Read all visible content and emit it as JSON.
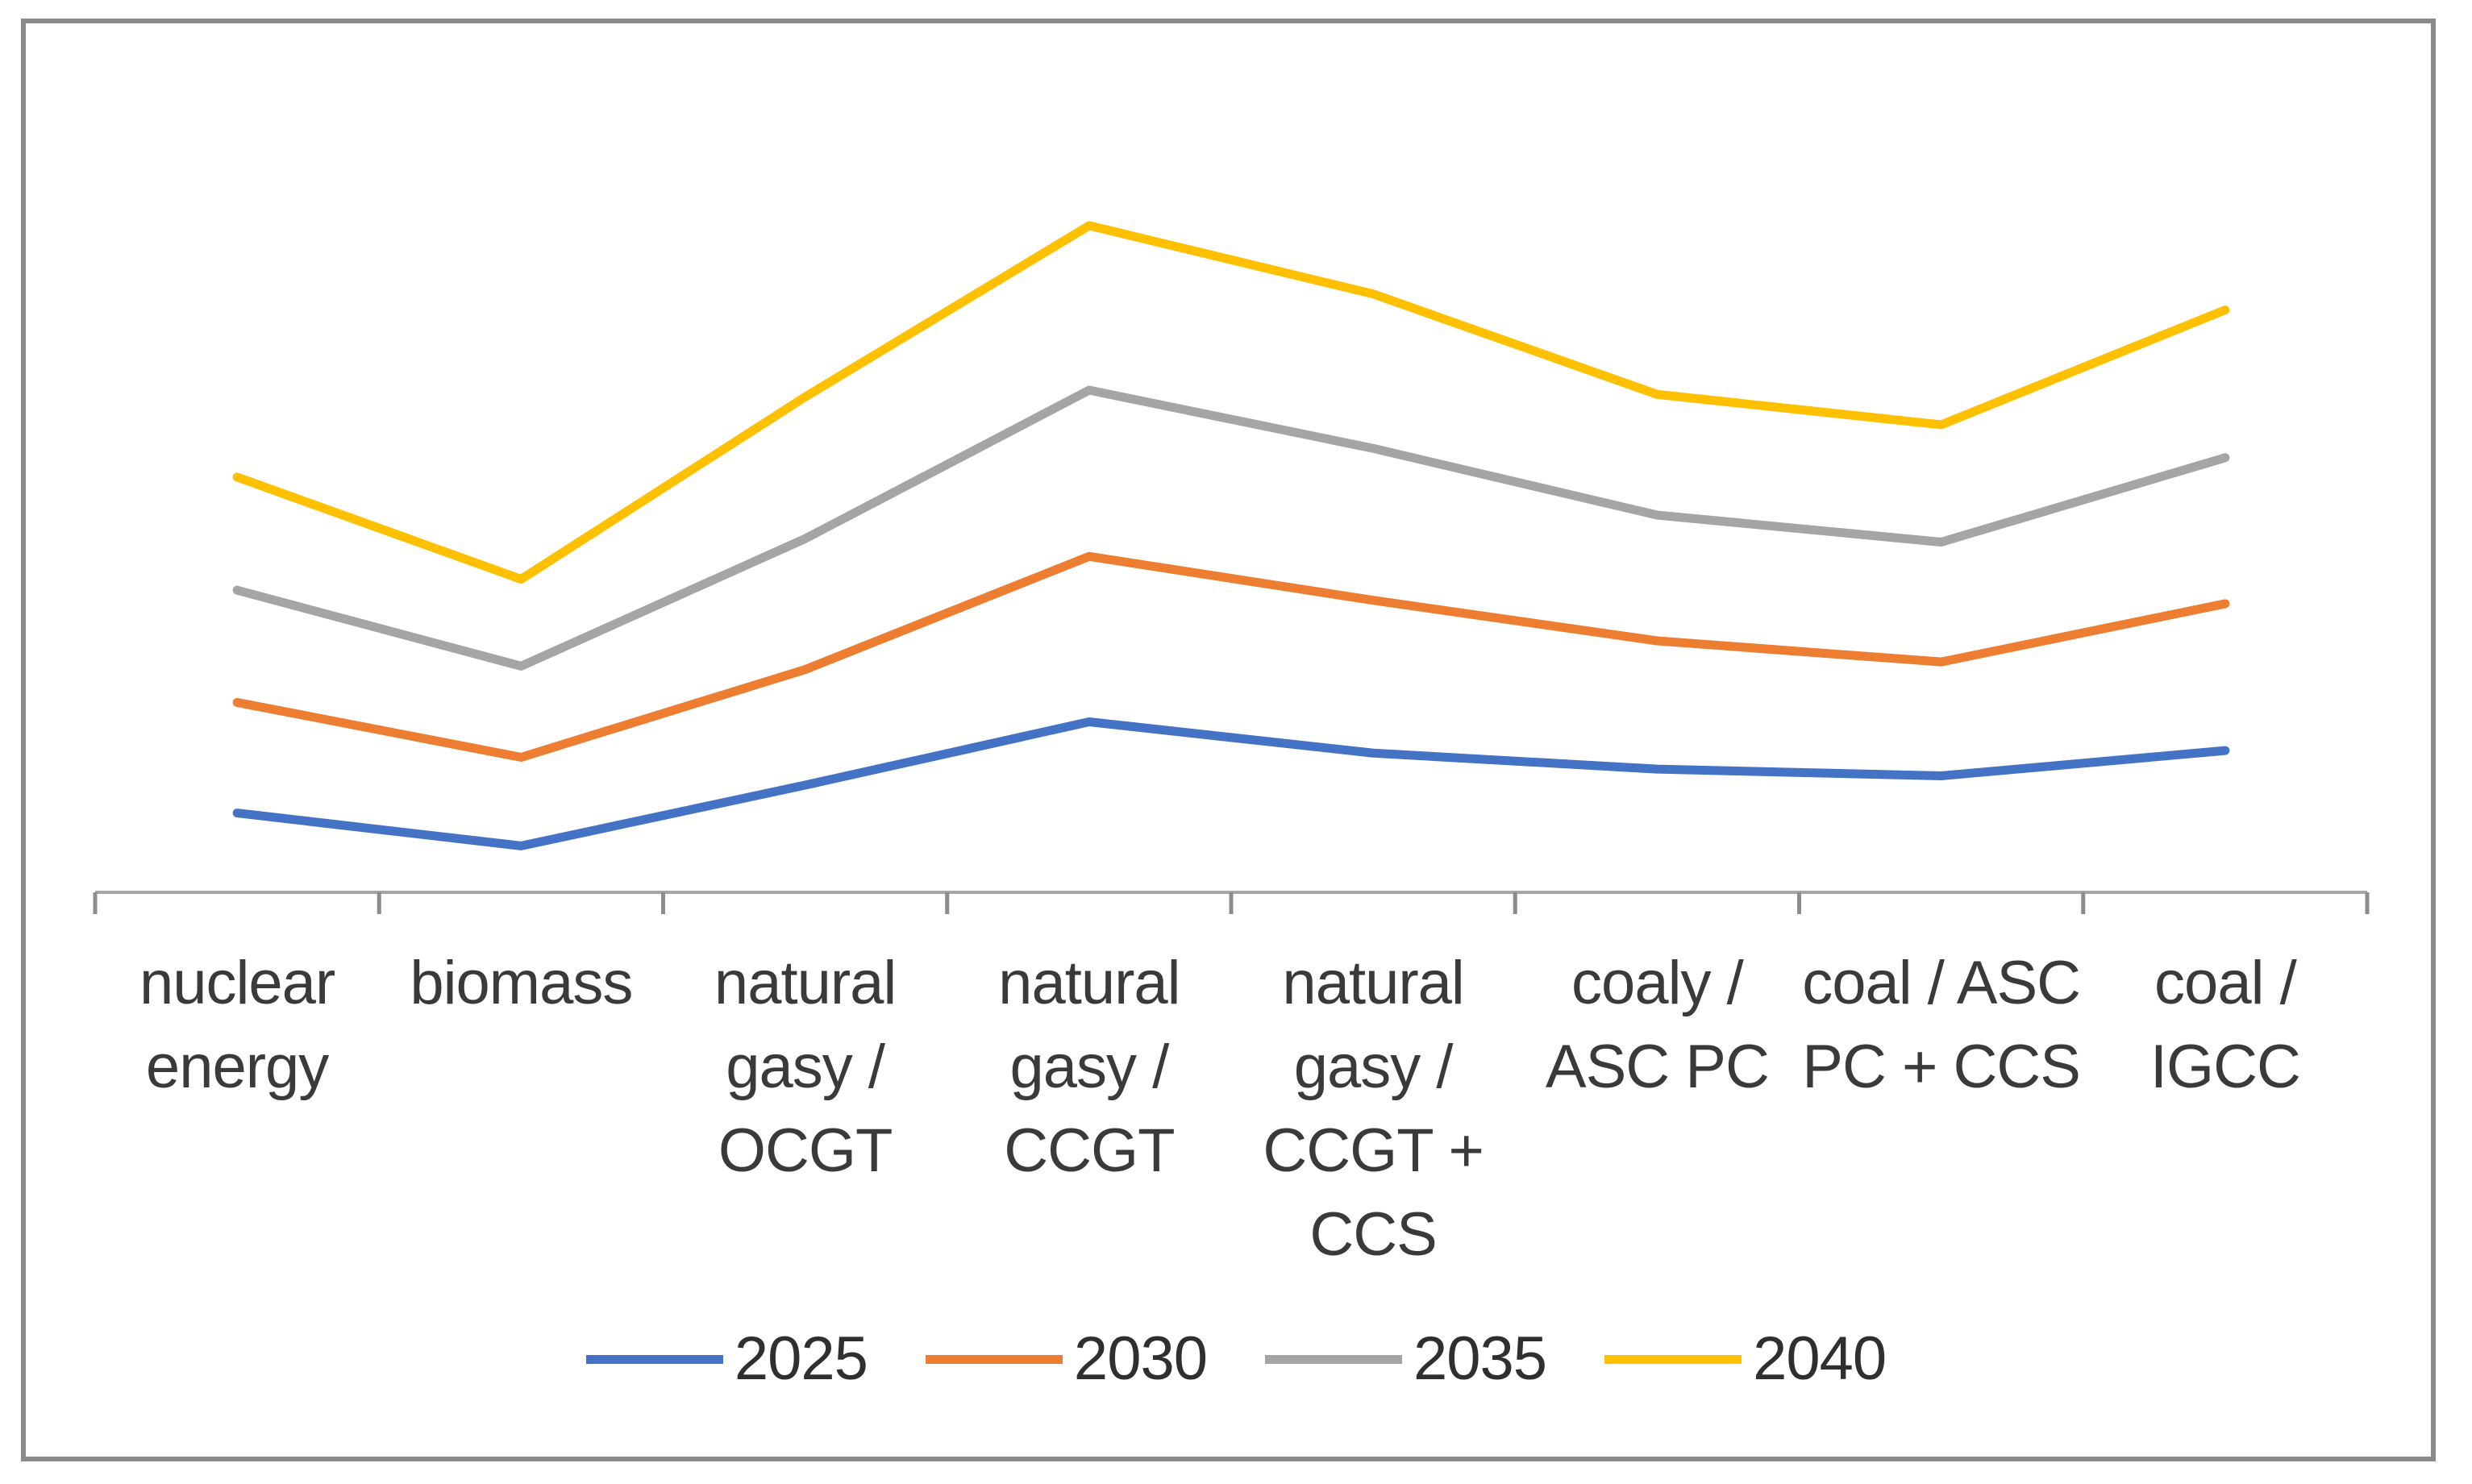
{
  "chart_data": {
    "type": "line",
    "title": "",
    "categories": [
      "nuclear energy",
      "biomass",
      "natural gasy / OCGT",
      "natural gasy / CCGT",
      "natural gasy / CCGT + CCS",
      "coaly / ASC PC",
      "coal / ASC PC + CCS",
      "coal / IGCC"
    ],
    "category_label_lines": [
      [
        "nuclear",
        "energy"
      ],
      [
        "biomass"
      ],
      [
        "natural",
        "gasy /",
        "OCGT"
      ],
      [
        "natural",
        "gasy /",
        "CCGT"
      ],
      [
        "natural",
        "gasy /",
        "CCGT +",
        "CCS"
      ],
      [
        "coaly /",
        "ASC PC"
      ],
      [
        "coal / ASC",
        "PC + CCS"
      ],
      [
        "coal /",
        "IGCC"
      ]
    ],
    "series": [
      {
        "name": "2025",
        "color": "#4472C4",
        "values": [
          9.4,
          5.5,
          12.7,
          20.2,
          16.5,
          14.6,
          13.8,
          16.8
        ]
      },
      {
        "name": "2030",
        "color": "#ED7D31",
        "values": [
          22.5,
          16.0,
          26.4,
          39.8,
          34.6,
          29.8,
          27.3,
          34.2
        ]
      },
      {
        "name": "2035",
        "color": "#A5A5A5",
        "values": [
          35.8,
          26.8,
          41.9,
          59.5,
          52.6,
          44.7,
          41.5,
          51.5
        ]
      },
      {
        "name": "2040",
        "color": "#FFC000",
        "values": [
          49.2,
          37.1,
          58.7,
          79.0,
          70.9,
          59.0,
          55.4,
          69.0
        ]
      }
    ],
    "xlabel": "",
    "ylabel": "",
    "ylim": [
      0,
      100
    ],
    "value_units": "relative height, % of plot area (chart shows no y-axis labels)",
    "grid": false,
    "y_axis_labels_visible": false,
    "legend": {
      "position": "bottom",
      "entries": [
        "2025",
        "2030",
        "2035",
        "2040"
      ]
    }
  },
  "styles": {
    "background": "#ffffff",
    "border_color": "#8a8a8a",
    "axis_line_color": "#a6a6a6",
    "tick_color": "#8c8c8c",
    "label_color": "#3a3a3a"
  }
}
